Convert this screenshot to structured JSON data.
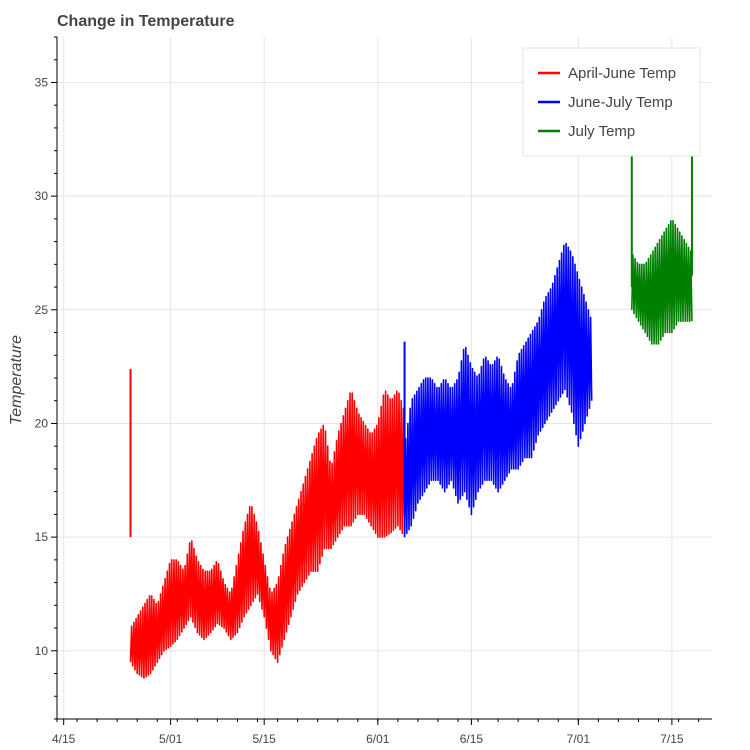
{
  "chart_data": {
    "type": "line",
    "title": "Change in Temperature",
    "xlabel": "",
    "ylabel": "Temperature",
    "x_axis_type": "date",
    "x_ticks": [
      "4/15",
      "5/01",
      "5/15",
      "6/01",
      "6/15",
      "7/01",
      "7/15"
    ],
    "x_tick_dates": [
      "2000-04-15",
      "2000-05-01",
      "2000-05-15",
      "2000-06-01",
      "2000-06-15",
      "2000-07-01",
      "2000-07-15"
    ],
    "x_range": [
      "2000-04-14",
      "2000-07-21"
    ],
    "y_ticks": [
      10,
      15,
      20,
      25,
      30,
      35
    ],
    "ylim": [
      7,
      37
    ],
    "grid": true,
    "legend_position": "top-right",
    "series": [
      {
        "name": "April-June Temp",
        "color": "#ff0000",
        "x": [
          "2000-04-25",
          "2000-04-26",
          "2000-04-27",
          "2000-04-28",
          "2000-04-29",
          "2000-04-30",
          "2000-05-01",
          "2000-05-02",
          "2000-05-03",
          "2000-05-04",
          "2000-05-05",
          "2000-05-06",
          "2000-05-07",
          "2000-05-08",
          "2000-05-09",
          "2000-05-10",
          "2000-05-11",
          "2000-05-12",
          "2000-05-13",
          "2000-05-14",
          "2000-05-15",
          "2000-05-16",
          "2000-05-17",
          "2000-05-18",
          "2000-05-19",
          "2000-05-20",
          "2000-05-21",
          "2000-05-22",
          "2000-05-23",
          "2000-05-24",
          "2000-05-25",
          "2000-05-26",
          "2000-05-27",
          "2000-05-28",
          "2000-05-29",
          "2000-05-30",
          "2000-05-31",
          "2000-06-01",
          "2000-06-02",
          "2000-06-03",
          "2000-06-04",
          "2000-06-05"
        ],
        "lo": [
          9.5,
          9.0,
          8.8,
          9.0,
          9.5,
          10.0,
          10.2,
          10.5,
          11.0,
          11.5,
          10.8,
          10.5,
          10.8,
          11.2,
          11.0,
          10.5,
          10.8,
          11.5,
          12.0,
          12.5,
          11.5,
          10.0,
          9.5,
          10.5,
          11.5,
          12.5,
          13.0,
          13.5,
          13.5,
          14.5,
          14.5,
          15.0,
          15.5,
          15.5,
          16.0,
          16.0,
          15.5,
          15.0,
          15.0,
          15.2,
          15.5,
          15.0
        ],
        "hi": [
          11.0,
          11.5,
          12.0,
          12.5,
          12.0,
          13.0,
          14.0,
          14.0,
          13.5,
          15.0,
          14.0,
          13.5,
          13.5,
          14.0,
          13.0,
          12.5,
          14.0,
          15.5,
          16.5,
          15.5,
          14.0,
          12.5,
          13.0,
          14.5,
          15.5,
          16.5,
          17.5,
          18.5,
          19.5,
          20.0,
          18.0,
          19.5,
          20.5,
          21.5,
          20.5,
          20.0,
          19.5,
          20.0,
          21.5,
          21.0,
          21.5,
          20.5
        ]
      },
      {
        "name": "June-July Temp",
        "color": "#0000ff",
        "x": [
          "2000-06-05",
          "2000-06-06",
          "2000-06-07",
          "2000-06-08",
          "2000-06-09",
          "2000-06-10",
          "2000-06-11",
          "2000-06-12",
          "2000-06-13",
          "2000-06-14",
          "2000-06-15",
          "2000-06-16",
          "2000-06-17",
          "2000-06-18",
          "2000-06-19",
          "2000-06-20",
          "2000-06-21",
          "2000-06-22",
          "2000-06-23",
          "2000-06-24",
          "2000-06-25",
          "2000-06-26",
          "2000-06-27",
          "2000-06-28",
          "2000-06-29",
          "2000-06-30",
          "2000-07-01",
          "2000-07-02",
          "2000-07-03"
        ],
        "lo": [
          15.0,
          15.5,
          16.5,
          17.0,
          17.5,
          17.5,
          17.0,
          17.5,
          16.5,
          17.0,
          16.0,
          17.0,
          17.5,
          17.5,
          17.0,
          17.5,
          18.0,
          18.0,
          18.5,
          18.5,
          19.5,
          20.0,
          20.5,
          21.0,
          21.5,
          20.5,
          19.0,
          20.0,
          21.0
        ],
        "hi": [
          19.0,
          21.0,
          21.5,
          22.0,
          22.0,
          21.5,
          22.0,
          21.5,
          22.0,
          23.5,
          22.5,
          22.0,
          23.0,
          22.5,
          23.0,
          22.0,
          21.5,
          23.0,
          23.5,
          24.0,
          24.5,
          25.5,
          26.0,
          27.0,
          28.0,
          27.5,
          26.5,
          25.5,
          24.5
        ]
      },
      {
        "name": "July Temp",
        "color": "#008000",
        "x": [
          "2000-07-09",
          "2000-07-10",
          "2000-07-11",
          "2000-07-12",
          "2000-07-13",
          "2000-07-14",
          "2000-07-15",
          "2000-07-16",
          "2000-07-17",
          "2000-07-18"
        ],
        "lo": [
          25.0,
          24.5,
          24.0,
          23.5,
          23.5,
          24.0,
          24.0,
          24.5,
          24.5,
          24.5
        ],
        "hi": [
          27.5,
          27.0,
          27.0,
          27.5,
          28.0,
          28.5,
          29.0,
          28.5,
          28.0,
          27.5
        ]
      }
    ],
    "spikes": [
      {
        "series": 0,
        "x": "2000-04-25",
        "from": 15.0,
        "to": 22.4
      },
      {
        "series": 1,
        "x": "2000-06-05",
        "from": 16.0,
        "to": 23.6
      },
      {
        "series": 2,
        "x": "2000-07-09",
        "from": 26.0,
        "to": 32.0
      },
      {
        "series": 2,
        "x": "2000-07-18",
        "from": 26.5,
        "to": 32.0
      }
    ]
  }
}
